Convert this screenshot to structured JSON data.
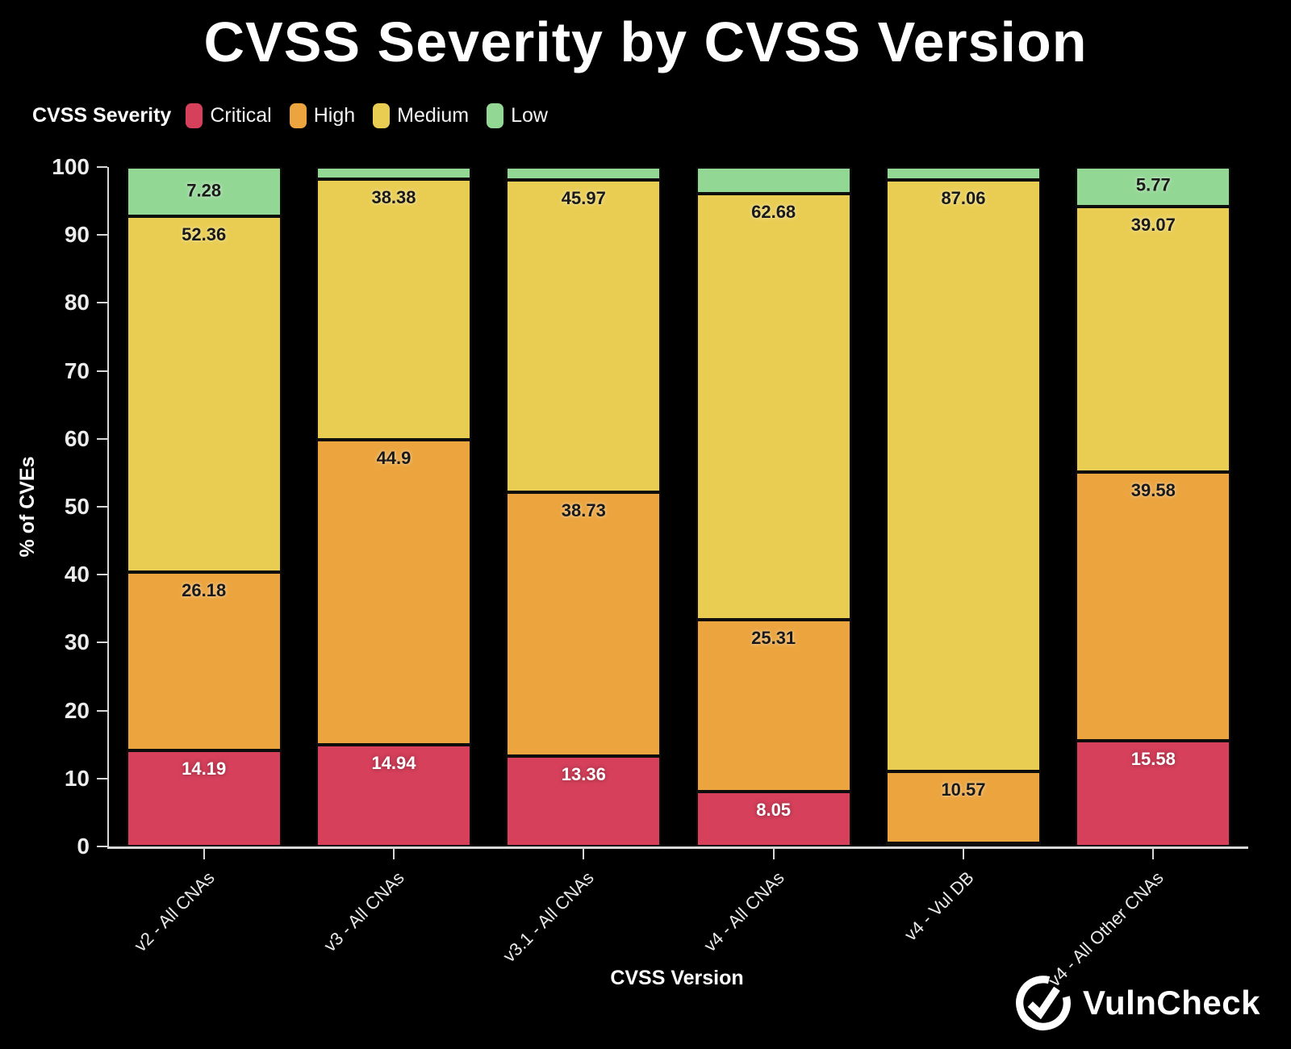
{
  "page": {
    "background": "#000000",
    "axis_color": "#d8d8d8"
  },
  "title": "CVSS Severity by CVSS Version",
  "legend": {
    "title": "CVSS Severity",
    "items": [
      {
        "label": "Critical",
        "color": "#d6405b"
      },
      {
        "label": "High",
        "color": "#eba43e"
      },
      {
        "label": "Medium",
        "color": "#e9cd52"
      },
      {
        "label": "Low",
        "color": "#93d795"
      }
    ]
  },
  "chart_data": {
    "type": "bar",
    "stacked": true,
    "orientation": "vertical",
    "title": "CVSS Severity by CVSS Version",
    "xlabel": "CVSS Version",
    "ylabel": "% of CVEs",
    "ylim": [
      0,
      100
    ],
    "yticks": [
      0,
      10,
      20,
      30,
      40,
      50,
      60,
      70,
      80,
      90,
      100
    ],
    "grid": false,
    "legend_position": "top-left",
    "categories": [
      "v2 - All CNAs",
      "v3 - All CNAs",
      "v3.1 - All CNAs",
      "v4 - All CNAs",
      "v4 - Vul DB",
      "v4 - All Other CNAs"
    ],
    "series": [
      {
        "name": "Critical",
        "color": "#d6405b",
        "label_on_dark": true,
        "values": [
          14.19,
          14.94,
          13.36,
          8.05,
          0.43,
          15.58
        ],
        "data_labels": [
          "14.19",
          "14.94",
          "13.36",
          "8.05",
          "",
          "15.58"
        ]
      },
      {
        "name": "High",
        "color": "#eba43e",
        "label_on_dark": false,
        "values": [
          26.18,
          44.9,
          38.73,
          25.31,
          10.57,
          39.58
        ],
        "data_labels": [
          "26.18",
          "44.9",
          "38.73",
          "25.31",
          "10.57",
          "39.58"
        ]
      },
      {
        "name": "Medium",
        "color": "#e9cd52",
        "label_on_dark": false,
        "values": [
          52.36,
          38.38,
          45.97,
          62.68,
          87.06,
          39.07
        ],
        "data_labels": [
          "52.36",
          "38.38",
          "45.97",
          "62.68",
          "87.06",
          "39.07"
        ]
      },
      {
        "name": "Low",
        "color": "#93d795",
        "label_on_dark": false,
        "values": [
          7.28,
          1.78,
          1.94,
          3.96,
          1.94,
          5.77
        ],
        "data_labels": [
          "7.28",
          "",
          "",
          "",
          "",
          "5.77"
        ]
      }
    ]
  },
  "branding": {
    "logo_text": "VulnCheck",
    "logo_icon": "check-circle",
    "color": "#ffffff"
  }
}
